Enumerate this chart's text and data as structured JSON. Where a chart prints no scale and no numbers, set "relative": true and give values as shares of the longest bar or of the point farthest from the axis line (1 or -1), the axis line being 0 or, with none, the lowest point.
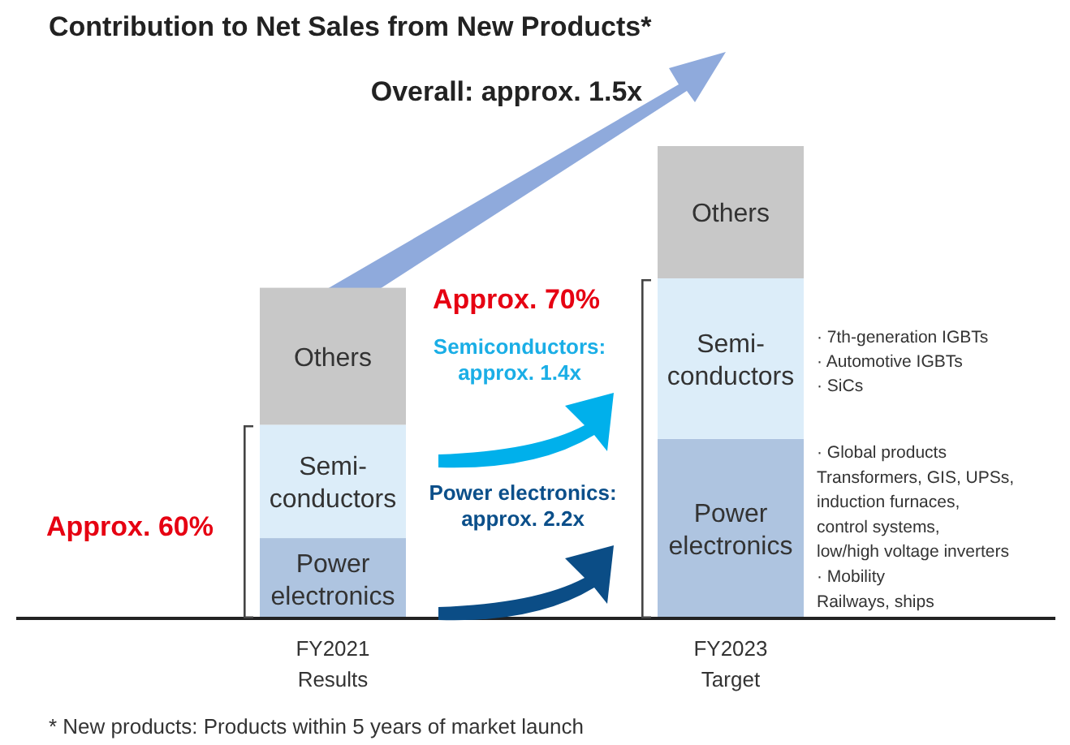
{
  "chart_data": {
    "type": "bar",
    "title": "Contribution to Net Sales from New Products*",
    "categories": [
      "FY2021\nResults",
      "FY2023\nTarget"
    ],
    "stacked": true,
    "relative": true,
    "series": [
      {
        "name": "Power\nelectronics",
        "color": "#aec4e0",
        "values": [
          0.17,
          0.38
        ]
      },
      {
        "name": "Semi-\nconductors",
        "color": "#dcedf9",
        "values": [
          0.24,
          0.34
        ]
      },
      {
        "name": "Others",
        "color": "#c8c8c8",
        "values": [
          0.29,
          0.28
        ]
      }
    ],
    "annotations": [
      "Overall: approx. 1.5x",
      "Approx. 70%",
      "Semiconductors:\napprox. 1.4x",
      "Power electronics:\napprox. 2.2x",
      "Approx. 60%",
      "· 7th-generation IGBTs\n· Automotive IGBTs\n· SiCs",
      "· Global products\nTransformers, GIS, UPSs,\ninduction furnaces,\ncontrol systems,\nlow/high voltage inverters\n· Mobility\nRailways, ships",
      "* New products: Products within 5 years of market launch"
    ]
  }
}
